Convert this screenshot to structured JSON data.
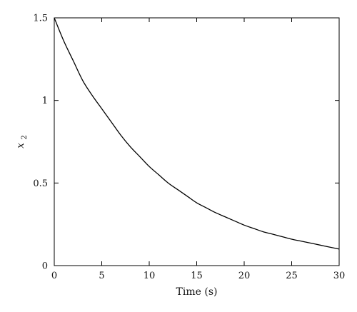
{
  "chart_data": {
    "type": "line",
    "xlabel": "Time (s)",
    "ylabel": "x",
    "ylabel_subscript": "2",
    "xlim": [
      0,
      30
    ],
    "ylim": [
      0,
      1.5
    ],
    "x_ticks": [
      0,
      5,
      10,
      15,
      20,
      25,
      30
    ],
    "y_ticks": [
      0,
      0.5,
      1,
      1.5
    ],
    "x_tick_labels": [
      "0",
      "5",
      "10",
      "15",
      "20",
      "25",
      "30"
    ],
    "y_tick_labels": [
      "0",
      "0.5",
      "1",
      "1.5"
    ],
    "grid": false,
    "line_color": "#000000",
    "series": [
      {
        "x": [
          0,
          1,
          2,
          3,
          4,
          5,
          6,
          7,
          8,
          9,
          10,
          11,
          12,
          13,
          14,
          15,
          16,
          17,
          18,
          19,
          20,
          21,
          22,
          23,
          24,
          25,
          26,
          27,
          28,
          29,
          30
        ],
        "y": [
          1.5,
          1.36,
          1.24,
          1.12,
          1.03,
          0.95,
          0.87,
          0.79,
          0.72,
          0.66,
          0.6,
          0.55,
          0.5,
          0.46,
          0.42,
          0.38,
          0.35,
          0.32,
          0.295,
          0.27,
          0.245,
          0.225,
          0.205,
          0.19,
          0.175,
          0.16,
          0.148,
          0.136,
          0.124,
          0.112,
          0.1
        ]
      }
    ]
  }
}
